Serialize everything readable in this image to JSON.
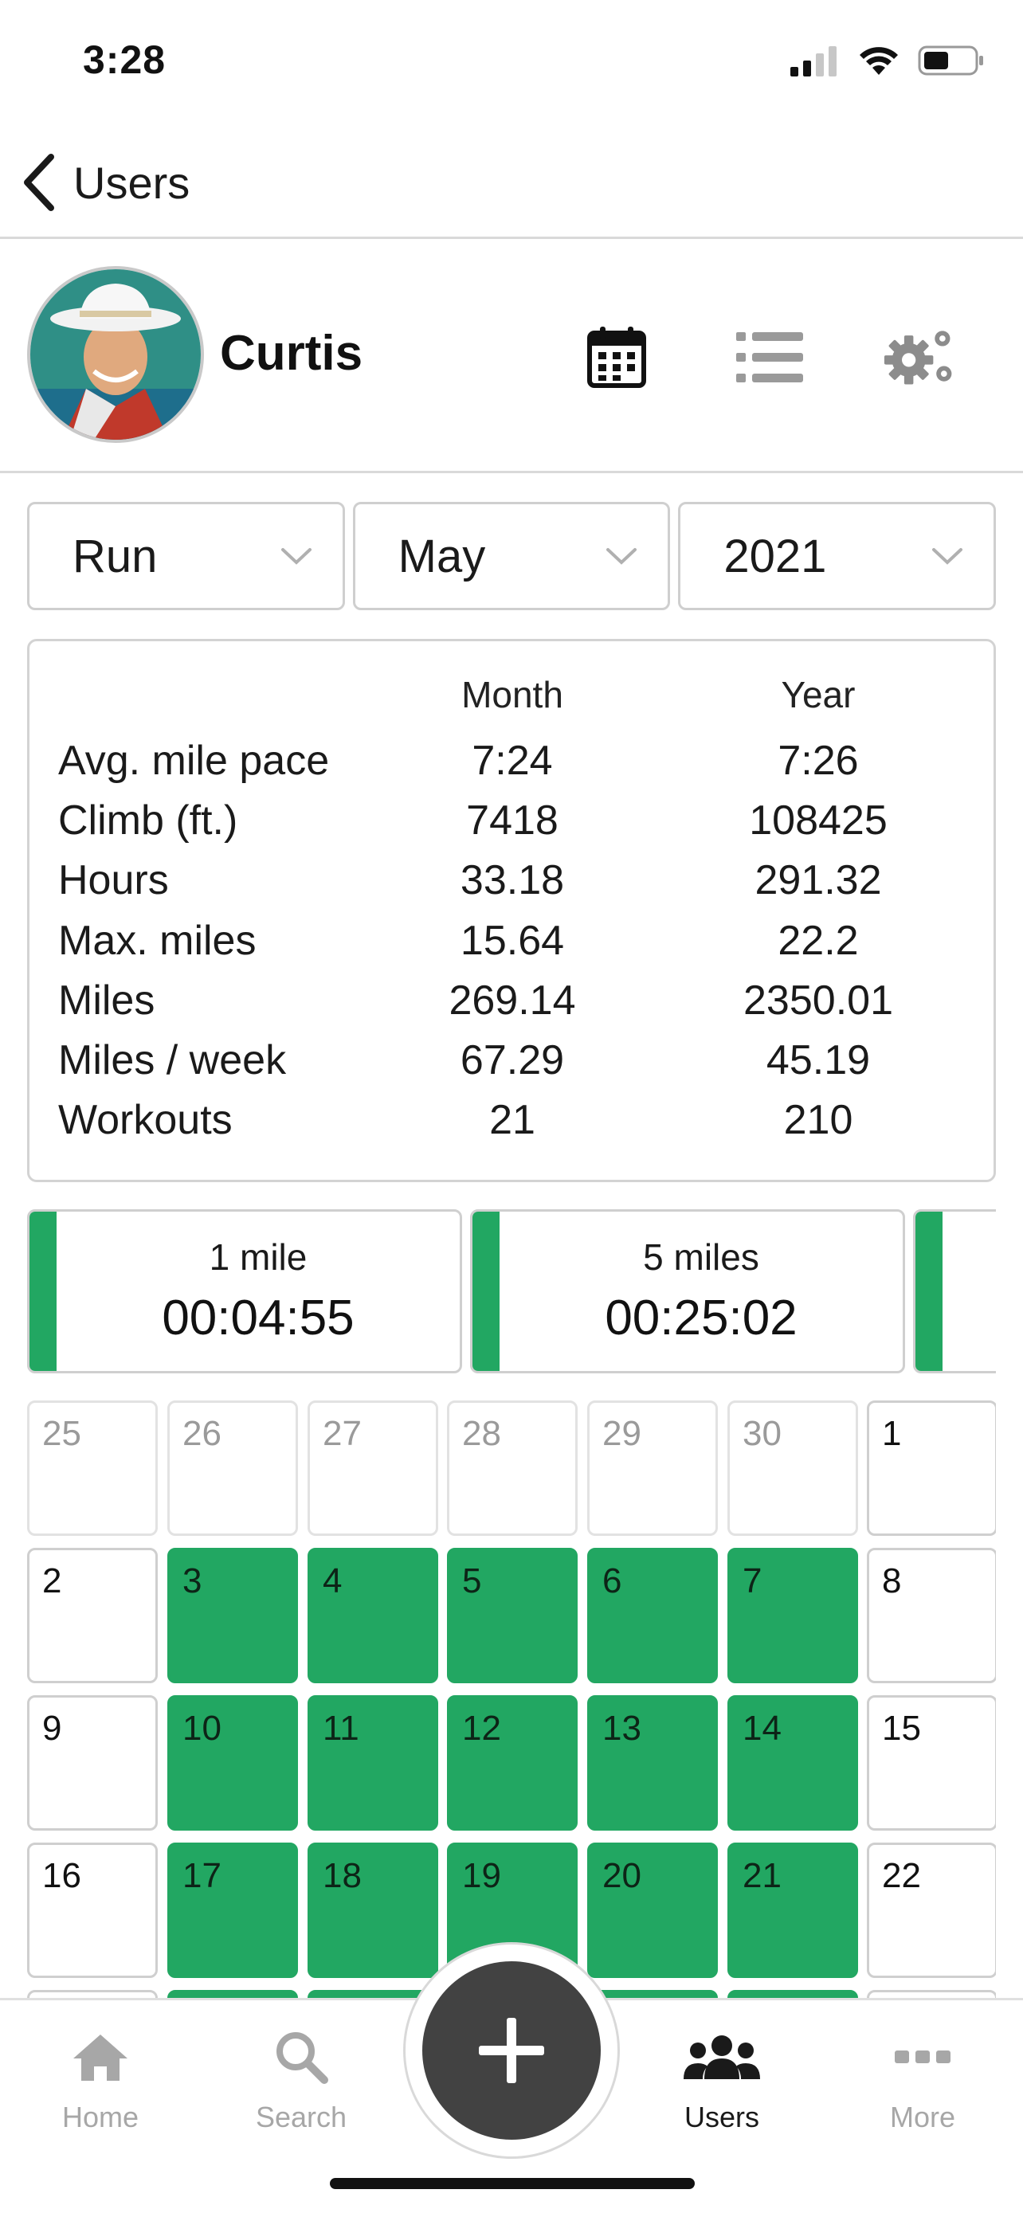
{
  "status_bar": {
    "time": "3:28"
  },
  "nav": {
    "back_label": "Users"
  },
  "profile": {
    "name": "Curtis"
  },
  "filters": [
    {
      "value": "Run"
    },
    {
      "value": "May"
    },
    {
      "value": "2021"
    }
  ],
  "stats": {
    "headers": {
      "month": "Month",
      "year": "Year"
    },
    "rows": [
      {
        "label": "Avg. mile pace",
        "month": "7:24",
        "year": "7:26"
      },
      {
        "label": "Climb (ft.)",
        "month": "7418",
        "year": "108425"
      },
      {
        "label": "Hours",
        "month": "33.18",
        "year": "291.32"
      },
      {
        "label": "Max. miles",
        "month": "15.64",
        "year": "22.2"
      },
      {
        "label": "Miles",
        "month": "269.14",
        "year": "2350.01"
      },
      {
        "label": "Miles / week",
        "month": "67.29",
        "year": "45.19"
      },
      {
        "label": "Workouts",
        "month": "21",
        "year": "210"
      }
    ]
  },
  "personal_records": [
    {
      "label": "1 mile",
      "time": "00:04:55"
    },
    {
      "label": "5 miles",
      "time": "00:25:02"
    }
  ],
  "calendar": {
    "weeks": [
      [
        {
          "d": "25",
          "s": "muted"
        },
        {
          "d": "26",
          "s": "muted"
        },
        {
          "d": "27",
          "s": "muted"
        },
        {
          "d": "28",
          "s": "muted"
        },
        {
          "d": "29",
          "s": "muted"
        },
        {
          "d": "30",
          "s": "muted"
        },
        {
          "d": "1",
          "s": "plain"
        }
      ],
      [
        {
          "d": "2",
          "s": "plain"
        },
        {
          "d": "3",
          "s": "active"
        },
        {
          "d": "4",
          "s": "active"
        },
        {
          "d": "5",
          "s": "active"
        },
        {
          "d": "6",
          "s": "active"
        },
        {
          "d": "7",
          "s": "active"
        },
        {
          "d": "8",
          "s": "plain"
        }
      ],
      [
        {
          "d": "9",
          "s": "plain"
        },
        {
          "d": "10",
          "s": "active"
        },
        {
          "d": "11",
          "s": "active"
        },
        {
          "d": "12",
          "s": "active"
        },
        {
          "d": "13",
          "s": "active"
        },
        {
          "d": "14",
          "s": "active"
        },
        {
          "d": "15",
          "s": "plain"
        }
      ],
      [
        {
          "d": "16",
          "s": "plain"
        },
        {
          "d": "17",
          "s": "active"
        },
        {
          "d": "18",
          "s": "active"
        },
        {
          "d": "19",
          "s": "active"
        },
        {
          "d": "20",
          "s": "active"
        },
        {
          "d": "21",
          "s": "active"
        },
        {
          "d": "22",
          "s": "plain"
        }
      ],
      [
        {
          "d": "",
          "s": "plain"
        },
        {
          "d": "",
          "s": "active"
        },
        {
          "d": "",
          "s": "active"
        },
        {
          "d": "",
          "s": "active"
        },
        {
          "d": "",
          "s": "active"
        },
        {
          "d": "",
          "s": "active"
        },
        {
          "d": "",
          "s": "plain"
        }
      ]
    ]
  },
  "tabs": [
    {
      "label": "Home",
      "icon": "home-icon"
    },
    {
      "label": "Search",
      "icon": "search-icon"
    },
    {
      "label": "Users",
      "icon": "users-icon"
    },
    {
      "label": "More",
      "icon": "more-icon"
    }
  ],
  "colors": {
    "accent": "#22a762",
    "fab": "#424242",
    "muted_text": "#a7a7a7"
  }
}
